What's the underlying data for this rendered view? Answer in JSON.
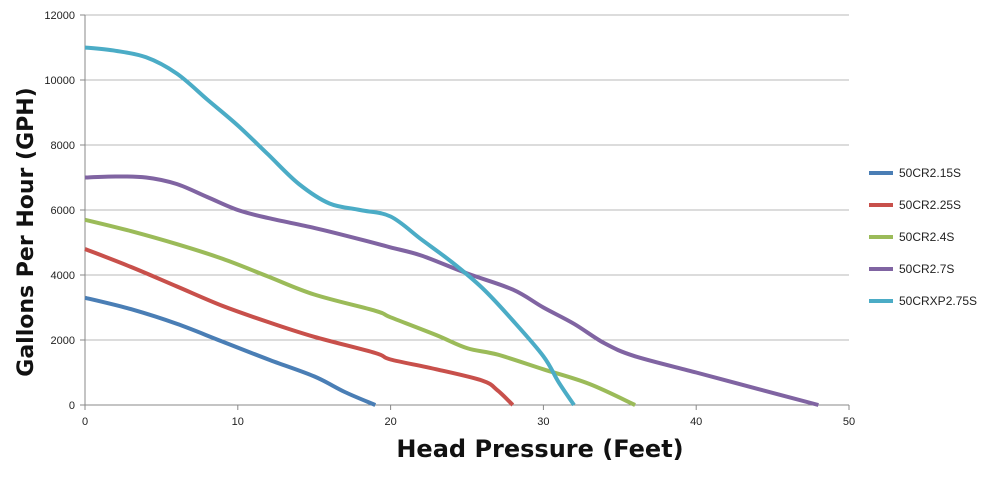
{
  "chart_data": {
    "type": "line",
    "title": "",
    "xlabel": "Head Pressure (Feet)",
    "ylabel": "Gallons Per Hour (GPH)",
    "xlim": [
      0,
      50
    ],
    "ylim": [
      0,
      12000
    ],
    "xticks": [
      0,
      10,
      20,
      30,
      40,
      50
    ],
    "yticks": [
      0,
      2000,
      4000,
      6000,
      8000,
      10000,
      12000
    ],
    "xtick_labels": [
      "0",
      "10",
      "20",
      "30",
      "40",
      "50"
    ],
    "ytick_labels": [
      "0",
      "2000",
      "4000",
      "6000",
      "8000",
      "10000",
      "12000"
    ],
    "grid": "horizontal",
    "legend_position": "right",
    "series": [
      {
        "name": "50CR2.15S",
        "color": "#4a7eb5",
        "x": [
          0,
          3,
          6,
          9,
          12,
          15,
          17,
          19
        ],
        "y": [
          3300,
          2950,
          2500,
          1950,
          1400,
          880,
          400,
          0
        ]
      },
      {
        "name": "50CR2.25S",
        "color": "#c8504b",
        "x": [
          0,
          3,
          6,
          9,
          12,
          15,
          19,
          20,
          23,
          26,
          27,
          28
        ],
        "y": [
          4800,
          4250,
          3650,
          3050,
          2550,
          2100,
          1600,
          1400,
          1100,
          750,
          450,
          0
        ]
      },
      {
        "name": "50CR2.4S",
        "color": "#9bbb59",
        "x": [
          0,
          3,
          6,
          9,
          12,
          15,
          19,
          20,
          23,
          25,
          27,
          30,
          33,
          36
        ],
        "y": [
          5700,
          5350,
          4950,
          4500,
          3950,
          3400,
          2900,
          2700,
          2150,
          1750,
          1550,
          1100,
          650,
          0
        ]
      },
      {
        "name": "50CR2.7S",
        "color": "#8064a2",
        "x": [
          0,
          2,
          4,
          6,
          8,
          10,
          12,
          15,
          18,
          20,
          22,
          25,
          28,
          30,
          32,
          34,
          36,
          40,
          44,
          48
        ],
        "y": [
          7000,
          7030,
          7000,
          6800,
          6400,
          6000,
          5750,
          5450,
          5100,
          4850,
          4600,
          4050,
          3550,
          3000,
          2500,
          1900,
          1500,
          1000,
          500,
          0
        ]
      },
      {
        "name": "50CRXP2.75S",
        "color": "#4bacc6",
        "x": [
          0,
          2,
          4,
          6,
          8,
          10,
          12,
          14,
          16,
          18,
          20,
          22,
          24,
          26,
          28,
          30,
          31,
          32
        ],
        "y": [
          11000,
          10900,
          10700,
          10200,
          9400,
          8600,
          7700,
          6800,
          6200,
          6000,
          5800,
          5100,
          4400,
          3600,
          2600,
          1500,
          700,
          0
        ]
      }
    ]
  }
}
